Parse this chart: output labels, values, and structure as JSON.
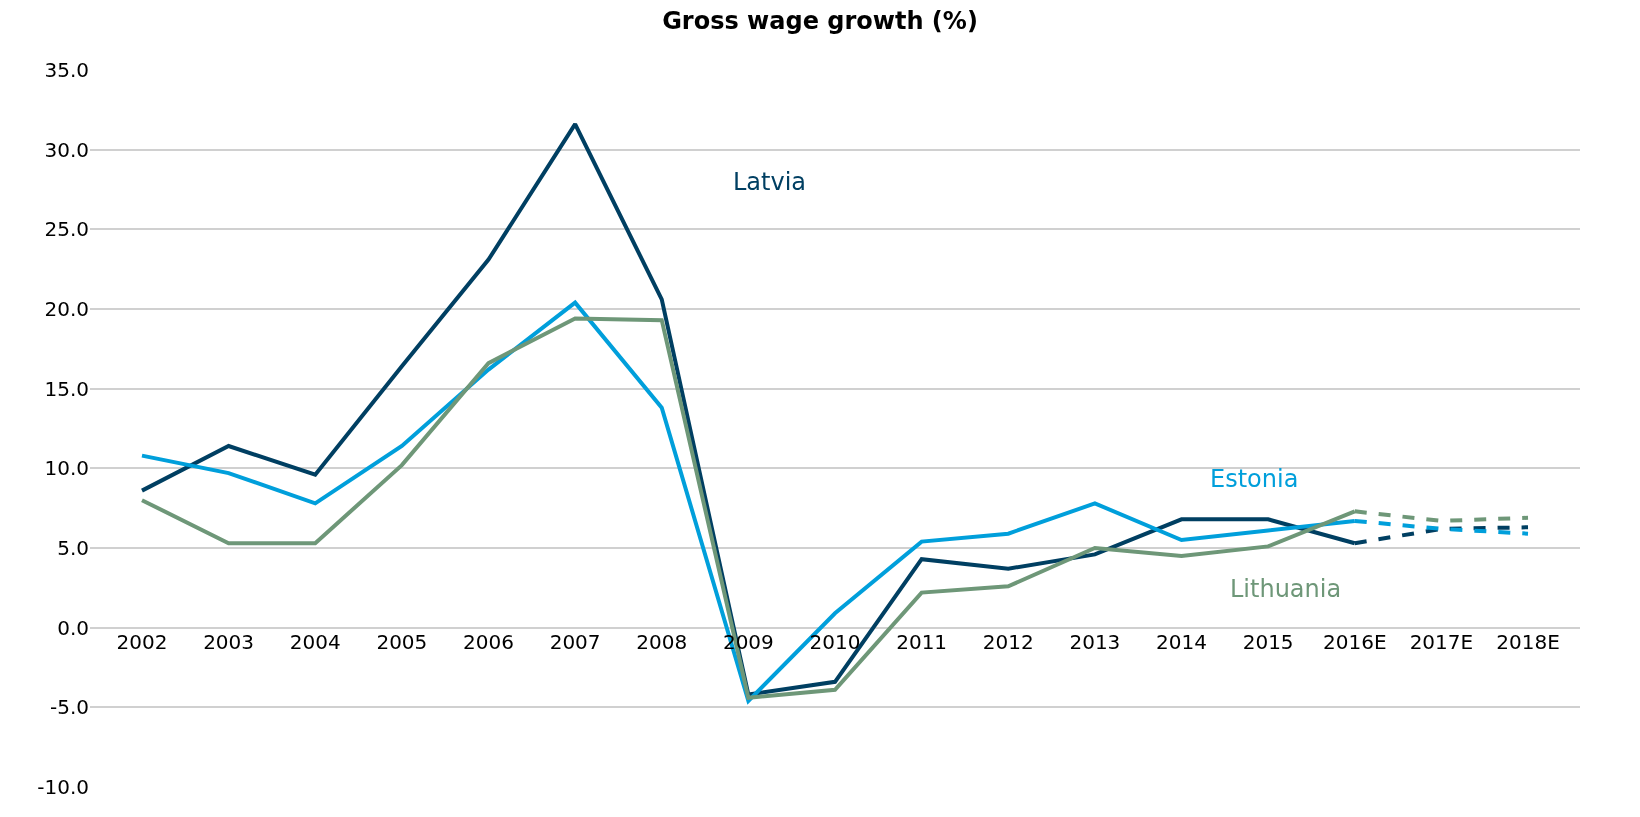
{
  "chart_data": {
    "type": "line",
    "title": "Gross wage growth (%)",
    "categories": [
      "2002",
      "2003",
      "2004",
      "2005",
      "2006",
      "2007",
      "2008",
      "2009",
      "2010",
      "2011",
      "2012",
      "2013",
      "2014",
      "2015",
      "2016E",
      "2017E",
      "2018E"
    ],
    "series": [
      {
        "name": "Latvia",
        "color": "#003f62",
        "line_style": "solid",
        "values": [
          8.6,
          11.4,
          9.6,
          16.4,
          23.1,
          31.6,
          20.6,
          -4.2,
          -3.4,
          4.3,
          3.7,
          4.6,
          6.8,
          6.8,
          5.3,
          null,
          null
        ]
      },
      {
        "name": "Estonia",
        "color": "#009fdb",
        "line_style": "solid",
        "values": [
          10.8,
          9.7,
          7.8,
          11.4,
          16.2,
          20.4,
          13.8,
          -4.6,
          0.9,
          5.4,
          5.9,
          7.8,
          5.5,
          6.1,
          6.7,
          null,
          null
        ]
      },
      {
        "name": "Lithuania",
        "color": "#6e9778",
        "line_style": "solid",
        "values": [
          8.0,
          5.3,
          5.3,
          10.2,
          16.6,
          19.4,
          19.3,
          -4.4,
          -3.9,
          2.2,
          2.6,
          5.0,
          4.5,
          5.1,
          7.3,
          null,
          null
        ]
      },
      {
        "color": "#003f62",
        "line_style": "dashed",
        "values": [
          null,
          null,
          null,
          null,
          null,
          null,
          null,
          null,
          null,
          null,
          null,
          null,
          null,
          null,
          5.3,
          6.2,
          6.3
        ]
      },
      {
        "color": "#009fdb",
        "line_style": "dashed",
        "values": [
          null,
          null,
          null,
          null,
          null,
          null,
          null,
          null,
          null,
          null,
          null,
          null,
          null,
          null,
          6.7,
          6.2,
          5.9
        ]
      },
      {
        "color": "#6e9778",
        "line_style": "dashed",
        "values": [
          null,
          null,
          null,
          null,
          null,
          null,
          null,
          null,
          null,
          null,
          null,
          null,
          null,
          null,
          7.3,
          6.7,
          6.9
        ]
      }
    ],
    "ylim": [
      -10,
      35
    ],
    "yticks": [
      {
        "value": -10,
        "label": "-10.0"
      },
      {
        "value": -5,
        "label": "-5.0"
      },
      {
        "value": 0,
        "label": "0.0"
      },
      {
        "value": 5,
        "label": "5.0"
      },
      {
        "value": 10,
        "label": "10.0"
      },
      {
        "value": 15,
        "label": "15.0"
      },
      {
        "value": 20,
        "label": "20.0"
      },
      {
        "value": 25,
        "label": "25.0"
      },
      {
        "value": 30,
        "label": "30.0"
      },
      {
        "value": 35,
        "label": "35.0"
      }
    ],
    "grid": "y",
    "legend": false,
    "marker": "none"
  }
}
